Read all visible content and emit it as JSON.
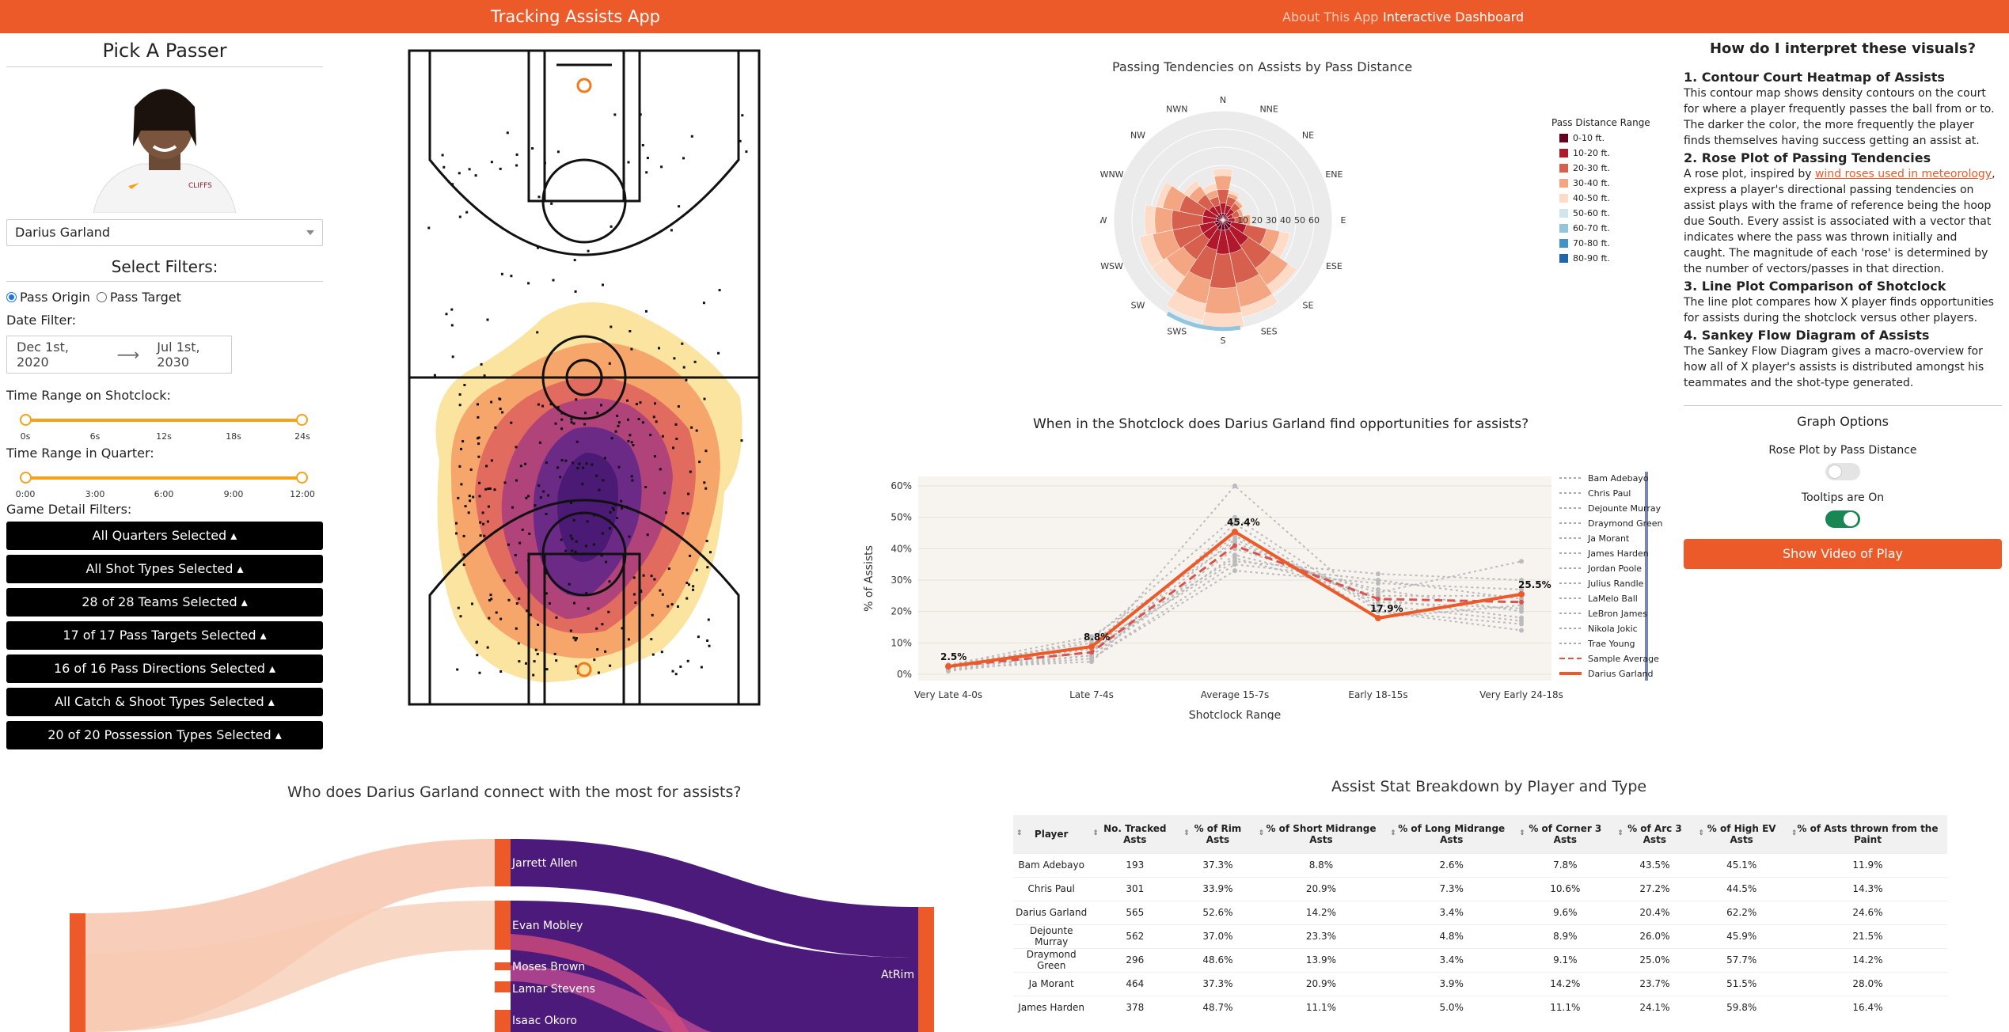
{
  "nav": {
    "brand": "Tracking Assists App",
    "about": "About This App",
    "dashboard": "Interactive Dashboard",
    "accent": "#ec5a29"
  },
  "left": {
    "title": "Pick A Passer",
    "player": "Darius Garland",
    "filters_title": "Select Filters:",
    "radio_origin": "Pass Origin",
    "radio_target": "Pass Target",
    "date_label": "Date Filter:",
    "date_start": "Dec 1st, 2020",
    "date_end": "Jul 1st, 2030",
    "shotclock_label": "Time Range on Shotclock:",
    "shotclock_ticks": [
      "0s",
      "6s",
      "12s",
      "18s",
      "24s"
    ],
    "quarter_label": "Time Range in Quarter:",
    "quarter_ticks": [
      "0:00",
      "3:00",
      "6:00",
      "9:00",
      "12:00"
    ],
    "game_label": "Game Detail Filters:",
    "buttons": [
      "All Quarters Selected",
      "All Shot Types Selected",
      "28 of 28 Teams Selected",
      "17 of 17 Pass Targets Selected",
      "16 of 16 Pass Directions Selected",
      "All Catch & Shoot Types Selected",
      "20 of 20 Possession Types Selected"
    ]
  },
  "rose": {
    "title": "Passing Tendencies on Assists by Pass Distance",
    "directions": [
      "N",
      "NNE",
      "NE",
      "ENE",
      "E",
      "ESE",
      "SE",
      "SES",
      "S",
      "SWS",
      "SW",
      "WSW",
      "W",
      "WNW",
      "NW",
      "NWN"
    ],
    "radial_ticks": [
      "10",
      "20",
      "30",
      "40",
      "50",
      "60"
    ],
    "legend_title": "Pass Distance Range",
    "legend": [
      {
        "label": "0-10 ft.",
        "color": "#67001f"
      },
      {
        "label": "10-20 ft.",
        "color": "#b2182b"
      },
      {
        "label": "20-30 ft.",
        "color": "#d6604d"
      },
      {
        "label": "30-40 ft.",
        "color": "#f4a582"
      },
      {
        "label": "40-50 ft.",
        "color": "#fddbc7"
      },
      {
        "label": "50-60 ft.",
        "color": "#d1e5f0"
      },
      {
        "label": "60-70 ft.",
        "color": "#92c5de"
      },
      {
        "label": "70-80 ft.",
        "color": "#4393c3"
      },
      {
        "label": "80-90 ft.",
        "color": "#2166ac"
      }
    ]
  },
  "line": {
    "title": "When in the Shotclock does Darius Garland find opportunities for assists?",
    "ylabel": "% of Assists",
    "xlabel": "Shotclock Range",
    "legend": [
      "Bam Adebayo",
      "Chris Paul",
      "Dejounte Murray",
      "Draymond Green",
      "Ja Morant",
      "James Harden",
      "Jordan Poole",
      "Julius Randle",
      "LaMelo Ball",
      "LeBron James",
      "Nikola Jokic",
      "Trae Young",
      "Sample Average",
      "Darius Garland"
    ]
  },
  "chart_data": {
    "type": "line",
    "categories": [
      "Very Late 4-0s",
      "Late 7-4s",
      "Average 15-7s",
      "Early 18-15s",
      "Very Early 24-18s"
    ],
    "yticks": [
      "0%",
      "10%",
      "20%",
      "30%",
      "40%",
      "50%",
      "60%"
    ],
    "ylim": [
      0,
      60
    ],
    "series": [
      {
        "name": "Darius Garland",
        "values": [
          2.5,
          8.8,
          45.4,
          17.9,
          25.5
        ],
        "labels": [
          "2.5%",
          "8.8%",
          "45.4%",
          "17.9%",
          "25.5%"
        ],
        "color": "#ec5a29"
      },
      {
        "name": "Sample Average",
        "values": [
          2.5,
          7,
          41,
          24,
          23
        ],
        "color": "#d9534f"
      },
      {
        "name": "Bam Adebayo",
        "values": [
          2,
          6,
          38,
          27,
          20
        ],
        "color": "#bbbbbb"
      },
      {
        "name": "Chris Paul",
        "values": [
          3,
          10,
          44,
          22,
          17
        ],
        "color": "#bbbbbb"
      },
      {
        "name": "Dejounte Murray",
        "values": [
          2,
          7,
          60,
          20,
          14
        ],
        "color": "#bbbbbb"
      },
      {
        "name": "Draymond Green",
        "values": [
          1.5,
          5,
          35,
          30,
          24
        ],
        "color": "#bbbbbb"
      },
      {
        "name": "Ja Morant",
        "values": [
          3,
          12,
          42,
          24,
          18
        ],
        "color": "#bbbbbb"
      },
      {
        "name": "James Harden",
        "values": [
          2,
          4,
          48,
          18,
          22
        ],
        "color": "#bbbbbb"
      },
      {
        "name": "Jordan Poole",
        "values": [
          2.5,
          8,
          36,
          32,
          30
        ],
        "color": "#bbbbbb"
      },
      {
        "name": "Julius Randle",
        "values": [
          1,
          6,
          40,
          26,
          36
        ],
        "color": "#bbbbbb"
      },
      {
        "name": "LaMelo Ball",
        "values": [
          3,
          9,
          37,
          25,
          25
        ],
        "color": "#bbbbbb"
      },
      {
        "name": "LeBron James",
        "values": [
          2,
          11,
          50,
          20,
          16
        ],
        "color": "#bbbbbb"
      },
      {
        "name": "Nikola Jokic",
        "values": [
          1.5,
          5,
          33,
          29,
          27
        ],
        "color": "#bbbbbb"
      },
      {
        "name": "Trae Young",
        "values": [
          2,
          7,
          43,
          23,
          21
        ],
        "color": "#bbbbbb"
      }
    ]
  },
  "sankey": {
    "title": "Who does Darius Garland connect with the most for assists?",
    "targets": [
      "Jarrett Allen",
      "Evan Mobley",
      "Moses Brown",
      "Lamar Stevens",
      "Isaac Okoro"
    ],
    "shot": "AtRim"
  },
  "table": {
    "title": "Assist Stat Breakdown by Player and Type",
    "headers": [
      "Player",
      "No. Tracked Asts",
      "% of Rim Asts",
      "% of Short Midrange Asts",
      "% of Long Midrange Asts",
      "% of Corner 3 Asts",
      "% of Arc 3 Asts",
      "% of High EV Asts",
      "% of Asts thrown from the Paint"
    ],
    "rows": [
      [
        "Bam Adebayo",
        "193",
        "37.3%",
        "8.8%",
        "2.6%",
        "7.8%",
        "43.5%",
        "45.1%",
        "11.9%"
      ],
      [
        "Chris Paul",
        "301",
        "33.9%",
        "20.9%",
        "7.3%",
        "10.6%",
        "27.2%",
        "44.5%",
        "14.3%"
      ],
      [
        "Darius Garland",
        "565",
        "52.6%",
        "14.2%",
        "3.4%",
        "9.6%",
        "20.4%",
        "62.2%",
        "24.6%"
      ],
      [
        "Dejounte Murray",
        "562",
        "37.0%",
        "23.3%",
        "4.8%",
        "8.9%",
        "26.0%",
        "45.9%",
        "21.5%"
      ],
      [
        "Draymond Green",
        "296",
        "48.6%",
        "13.9%",
        "3.4%",
        "9.1%",
        "25.0%",
        "57.7%",
        "14.2%"
      ],
      [
        "Ja Morant",
        "464",
        "37.3%",
        "20.9%",
        "3.9%",
        "14.2%",
        "23.7%",
        "51.5%",
        "28.0%"
      ],
      [
        "James Harden",
        "378",
        "48.7%",
        "11.1%",
        "5.0%",
        "11.1%",
        "24.1%",
        "59.8%",
        "16.4%"
      ]
    ]
  },
  "help": {
    "title": "How do I interpret these visuals?",
    "h1": "1. Contour Court Heatmap of Assists",
    "p1": "This contour map shows density contours on the court for where a player frequently passes the ball from or to. The darker the color, the more frequently the player finds themselves having success getting an assist at.",
    "h2": "2. Rose Plot of Passing Tendencies",
    "p2a": "A rose plot, inspired by ",
    "p2link": "wind roses used in meteorology",
    "p2b": ", express a player's directional passing tendencies on assist plays with the frame of reference being the hoop due South. Every assist is associated with a vector that indicates where the pass was thrown initially and caught. The magnitude of each 'rose' is determined by the number of vectors/passes in that direction.",
    "h3": "3. Line Plot Comparison of Shotclock",
    "p3": "The line plot compares how X player finds opportunities for assists during the shotclock versus other players.",
    "h4": "4. Sankey Flow Diagram of Assists",
    "p4": "The Sankey Flow Diagram gives a macro-overview for how all of X player's assists is distributed amongst his teammates and the shot-type generated.",
    "graph_options": "Graph Options",
    "toggle1": "Rose Plot by Pass Distance",
    "toggle1_on": false,
    "toggle2": "Tooltips are On",
    "toggle2_on": true,
    "video": "Show Video of Play"
  }
}
